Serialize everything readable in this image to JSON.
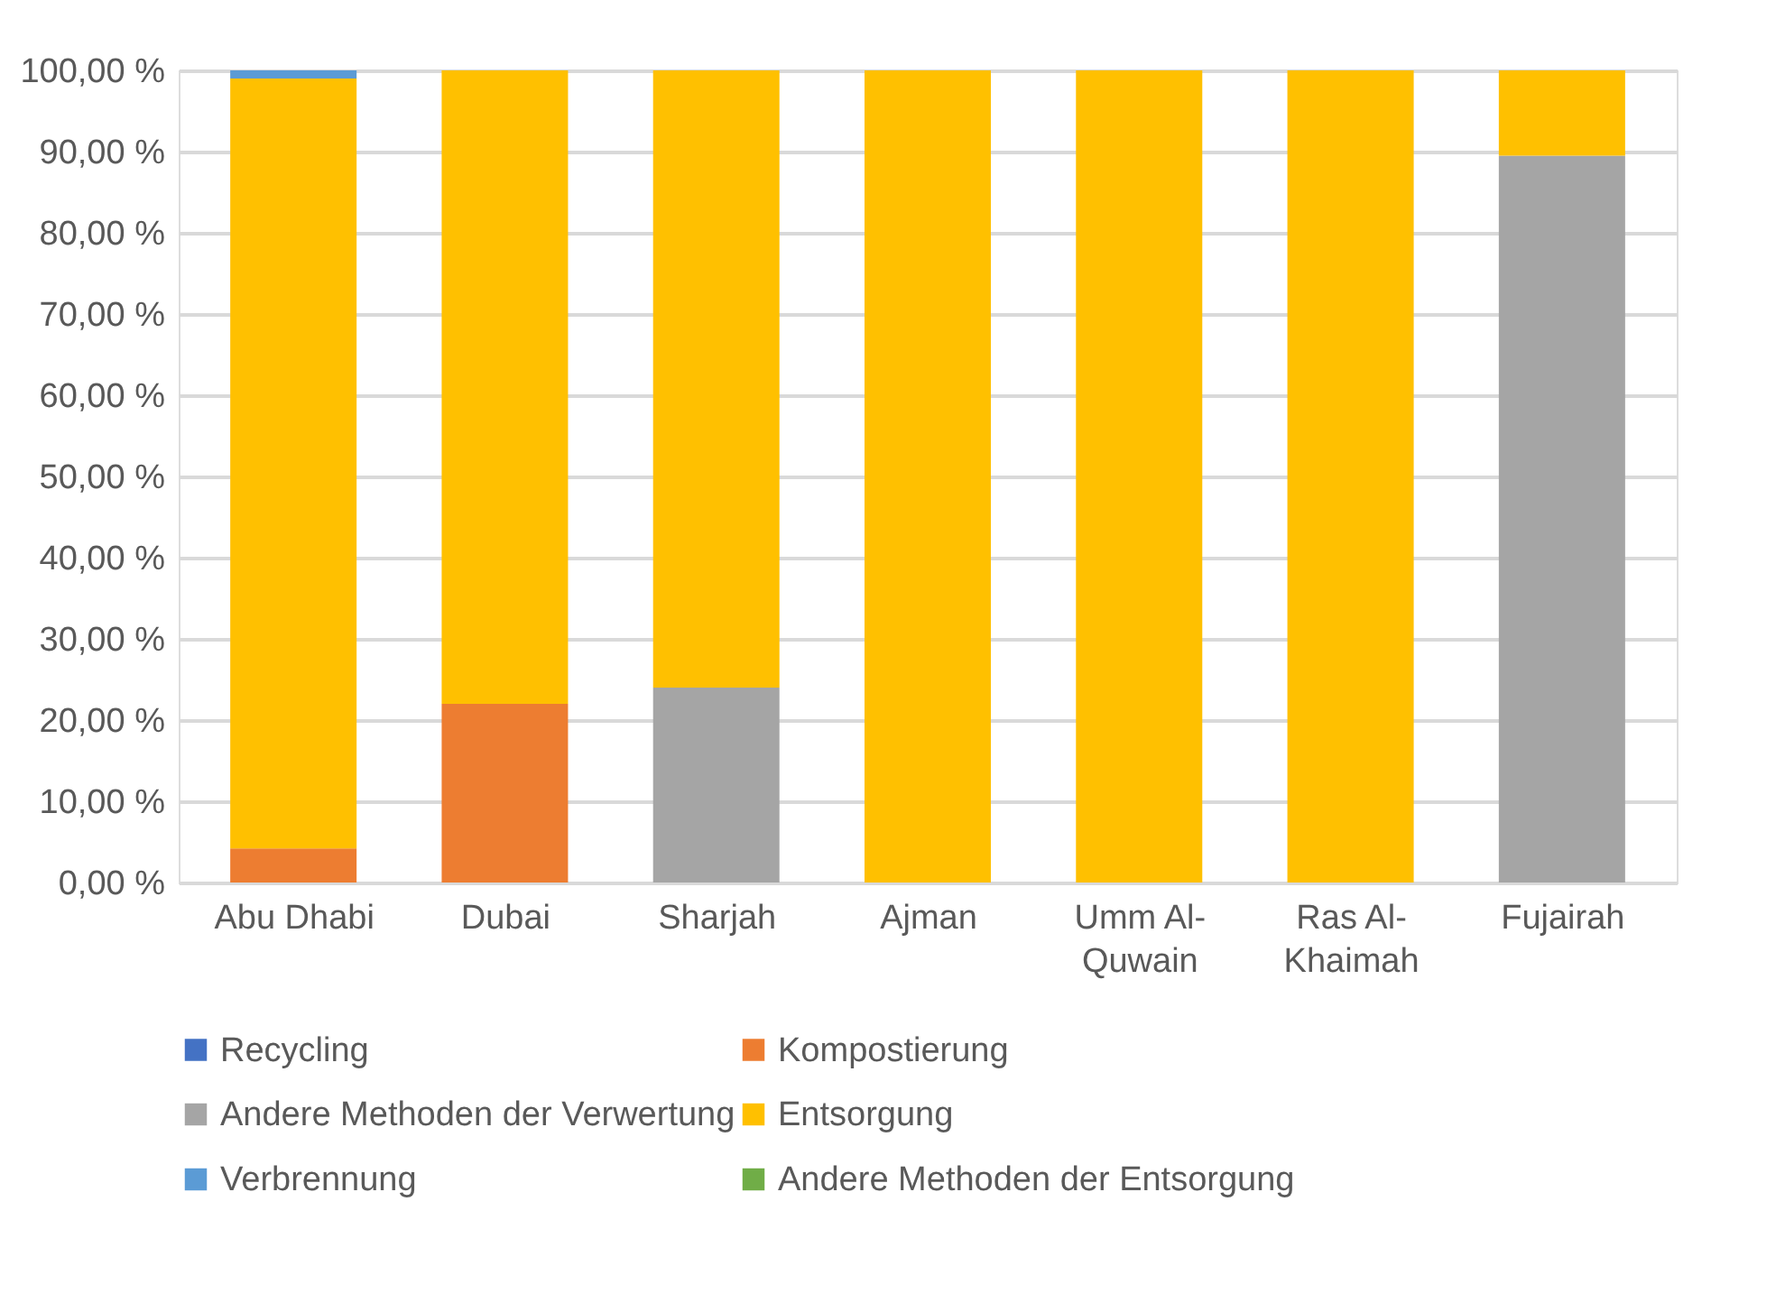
{
  "chart_data": {
    "type": "bar",
    "stacked": true,
    "categories": [
      "Abu Dhabi",
      "Dubai",
      "Sharjah",
      "Ajman",
      "Umm Al-Quwain",
      "Ras Al-Khaimah",
      "Fujairah"
    ],
    "series": [
      {
        "name": "Recycling",
        "color": "#4472c4",
        "values": [
          0,
          0,
          0,
          0,
          0,
          0,
          0
        ]
      },
      {
        "name": "Kompostierung",
        "color": "#ed7d31",
        "values": [
          4.2,
          22,
          0,
          0,
          0,
          0,
          0
        ]
      },
      {
        "name": "Andere Methoden der Verwertung",
        "color": "#a5a5a5",
        "values": [
          0,
          0,
          24,
          0,
          0,
          0,
          89.5
        ]
      },
      {
        "name": "Entsorgung",
        "color": "#ffc000",
        "values": [
          94.8,
          78,
          76,
          100,
          100,
          100,
          10.5
        ]
      },
      {
        "name": "Verbrennung",
        "color": "#5b9bd5",
        "values": [
          1,
          0,
          0,
          0,
          0,
          0,
          0
        ]
      },
      {
        "name": "Andere Methoden der Entsorgung",
        "color": "#70ad47",
        "values": [
          0,
          0,
          0,
          0,
          0,
          0,
          0
        ]
      }
    ],
    "ylim": [
      0,
      100
    ],
    "yticks": [
      {
        "value": 0,
        "label": "0,00 %"
      },
      {
        "value": 10,
        "label": "10,00 %"
      },
      {
        "value": 20,
        "label": "20,00 %"
      },
      {
        "value": 30,
        "label": "30,00 %"
      },
      {
        "value": 40,
        "label": "40,00 %"
      },
      {
        "value": 50,
        "label": "50,00 %"
      },
      {
        "value": 60,
        "label": "60,00 %"
      },
      {
        "value": 70,
        "label": "70,00 %"
      },
      {
        "value": 80,
        "label": "80,00 %"
      },
      {
        "value": 90,
        "label": "90,00 %"
      },
      {
        "value": 100,
        "label": "100,00 %"
      }
    ],
    "grid": "y",
    "legend": "bottom"
  }
}
